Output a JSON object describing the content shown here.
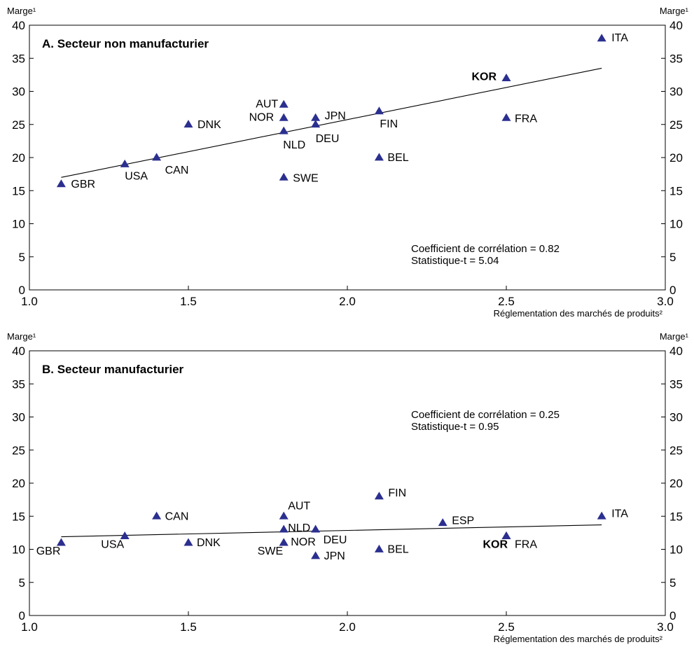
{
  "chart_data": [
    {
      "type": "scatter",
      "title": "A. Secteur non manufacturier",
      "ylabel_left": "Marge¹",
      "ylabel_right": "Marge¹",
      "xlabel": "Réglementation des marchés de produits²",
      "xlim": [
        1.0,
        3.0
      ],
      "ylim": [
        0,
        40
      ],
      "x_ticks": [
        "1.0",
        "1.5",
        "2.0",
        "2.5",
        "3.0"
      ],
      "y_ticks": [
        "0",
        "5",
        "10",
        "15",
        "20",
        "25",
        "30",
        "35",
        "40"
      ],
      "grid": false,
      "marker_color": "#2b2f8f",
      "points": [
        {
          "label": "GBR",
          "x": 1.1,
          "y": 16,
          "bold": false
        },
        {
          "label": "USA",
          "x": 1.3,
          "y": 19,
          "bold": false
        },
        {
          "label": "CAN",
          "x": 1.4,
          "y": 20,
          "bold": false
        },
        {
          "label": "DNK",
          "x": 1.5,
          "y": 25,
          "bold": false
        },
        {
          "label": "AUT",
          "x": 1.8,
          "y": 28,
          "bold": false
        },
        {
          "label": "NOR",
          "x": 1.8,
          "y": 26,
          "bold": false
        },
        {
          "label": "NLD",
          "x": 1.8,
          "y": 24,
          "bold": false
        },
        {
          "label": "SWE",
          "x": 1.8,
          "y": 17,
          "bold": false
        },
        {
          "label": "JPN",
          "x": 1.9,
          "y": 26,
          "bold": false
        },
        {
          "label": "DEU",
          "x": 1.9,
          "y": 25,
          "bold": false
        },
        {
          "label": "FIN",
          "x": 2.1,
          "y": 27,
          "bold": false
        },
        {
          "label": "BEL",
          "x": 2.1,
          "y": 20,
          "bold": false
        },
        {
          "label": "KOR",
          "x": 2.5,
          "y": 32,
          "bold": true
        },
        {
          "label": "FRA",
          "x": 2.5,
          "y": 26,
          "bold": false
        },
        {
          "label": "ITA",
          "x": 2.8,
          "y": 38,
          "bold": false
        }
      ],
      "trend_line": {
        "x": [
          1.1,
          2.8
        ],
        "y": [
          17,
          33.5
        ]
      },
      "annotations": [
        "Coefficient de corrélation = 0.82",
        "Statistique-t = 5.04"
      ]
    },
    {
      "type": "scatter",
      "title": "B. Secteur manufacturier",
      "ylabel_left": "Marge¹",
      "ylabel_right": "Marge¹",
      "xlabel": "Réglementation des marchés de produits²",
      "xlim": [
        1.0,
        3.0
      ],
      "ylim": [
        0,
        40
      ],
      "x_ticks": [
        "1.0",
        "1.5",
        "2.0",
        "2.5",
        "3.0"
      ],
      "y_ticks": [
        "0",
        "5",
        "10",
        "15",
        "20",
        "25",
        "30",
        "35",
        "40"
      ],
      "grid": false,
      "marker_color": "#2b2f8f",
      "points": [
        {
          "label": "GBR",
          "x": 1.1,
          "y": 11,
          "bold": false
        },
        {
          "label": "USA",
          "x": 1.3,
          "y": 12,
          "bold": false
        },
        {
          "label": "CAN",
          "x": 1.4,
          "y": 15,
          "bold": false
        },
        {
          "label": "DNK",
          "x": 1.5,
          "y": 11,
          "bold": false
        },
        {
          "label": "AUT",
          "x": 1.8,
          "y": 15,
          "bold": false
        },
        {
          "label": "NLD",
          "x": 1.8,
          "y": 13,
          "bold": false
        },
        {
          "label": "NOR",
          "x": 1.8,
          "y": 11,
          "bold": false
        },
        {
          "label": "SWE",
          "x": 1.8,
          "y": 11,
          "bold": false
        },
        {
          "label": "DEU",
          "x": 1.9,
          "y": 13,
          "bold": false
        },
        {
          "label": "JPN",
          "x": 1.9,
          "y": 9,
          "bold": false
        },
        {
          "label": "FIN",
          "x": 2.1,
          "y": 18,
          "bold": false
        },
        {
          "label": "BEL",
          "x": 2.1,
          "y": 10,
          "bold": false
        },
        {
          "label": "ESP",
          "x": 2.3,
          "y": 14,
          "bold": false
        },
        {
          "label": "KOR",
          "x": 2.5,
          "y": 12,
          "bold": true
        },
        {
          "label": "FRA",
          "x": 2.5,
          "y": 12,
          "bold": false
        },
        {
          "label": "ITA",
          "x": 2.8,
          "y": 15,
          "bold": false
        }
      ],
      "trend_line": {
        "x": [
          1.1,
          2.8
        ],
        "y": [
          11.9,
          13.7
        ]
      },
      "annotations": [
        "Coefficient de corrélation = 0.25",
        "Statistique-t = 0.95"
      ]
    }
  ]
}
